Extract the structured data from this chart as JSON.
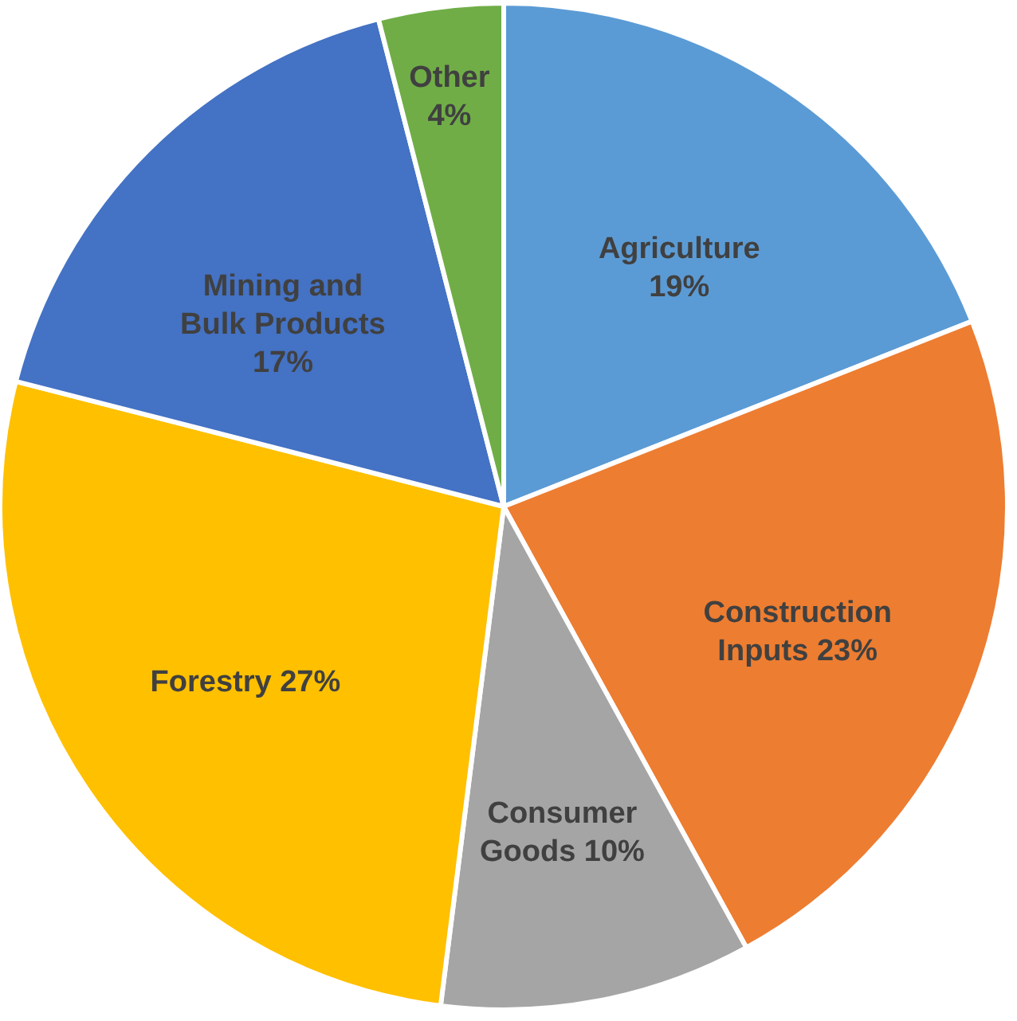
{
  "chart_data": {
    "type": "pie",
    "categories": [
      "Agriculture",
      "Construction Inputs",
      "Consumer Goods",
      "Forestry",
      "Mining and Bulk Products",
      "Other"
    ],
    "values": [
      19,
      23,
      10,
      27,
      17,
      4
    ],
    "value_labels": [
      "19%",
      "23%",
      "10%",
      "27%",
      "17%",
      "4%"
    ],
    "colors": [
      "#5b9bd5",
      "#ed7d31",
      "#a5a5a5",
      "#ffc000",
      "#4472c4",
      "#70ad47"
    ]
  }
}
